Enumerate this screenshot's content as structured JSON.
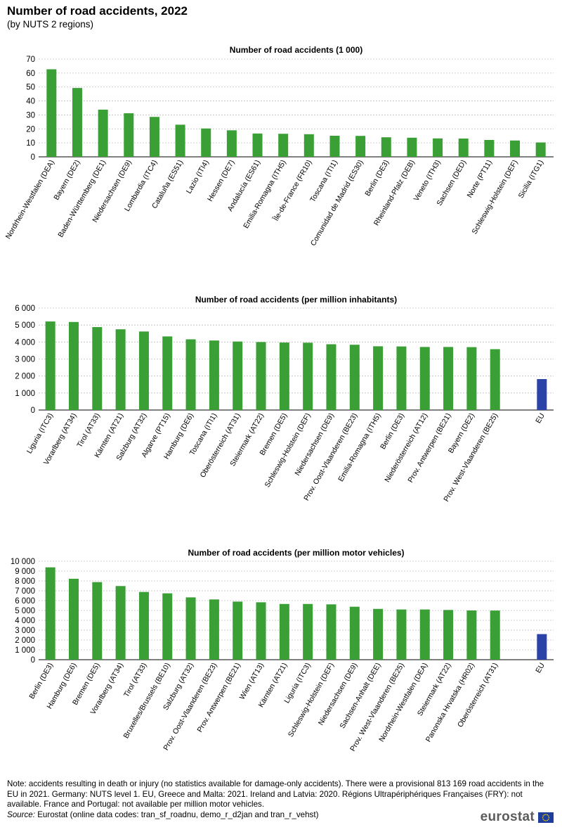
{
  "page": {
    "title": "Number of road accidents, 2022",
    "subtitle": "(by NUTS 2 regions)"
  },
  "colors": {
    "bar": "#3aa035",
    "eu_bar": "#2b42a8",
    "grid": "#bfbfbf",
    "axis": "#000000"
  },
  "chart_data": [
    {
      "type": "bar",
      "title": "Number of road accidents (1 000)",
      "categories": [
        "Nordrhein-Westfalen (DEA)",
        "Bayern (DE2)",
        "Baden-Württemberg (DE1)",
        "Niedersachsen (DE9)",
        "Lombardia (ITC4)",
        "Cataluña (ES51)",
        "Lazio (ITI4)",
        "Hessen (DE7)",
        "Andalucía (ES61)",
        "Emilia-Romagna (ITH5)",
        "Île-de-France (FR10)",
        "Toscana (ITI1)",
        "Comunidad de Madrid (ES30)",
        "Berlin (DE3)",
        "Rheinland-Pfalz (DEB)",
        "Veneto (ITH3)",
        "Sachsen (DED)",
        "Norte (PT11)",
        "Schleswig-Holstein (DEF)",
        "Sicilia (ITG1)"
      ],
      "values": [
        62.7,
        49.3,
        33.8,
        31.2,
        28.6,
        23.0,
        20.3,
        19.0,
        16.7,
        16.5,
        16.2,
        15.1,
        15.0,
        14.0,
        13.7,
        13.2,
        13.1,
        12.1,
        11.7,
        10.3
      ],
      "ylim": [
        0,
        70
      ],
      "yticks": [
        "0",
        "10",
        "20",
        "30",
        "40",
        "50",
        "60",
        "70"
      ],
      "grid": true
    },
    {
      "type": "bar",
      "title": "Number of road accidents (per million inhabitants)",
      "categories": [
        "Liguria (ITC3)",
        "Vorarlberg (AT34)",
        "Tirol (AT33)",
        "Kärnten (AT21)",
        "Salzburg (AT32)",
        "Algarve (PT15)",
        "Hamburg (DE6)",
        "Toscana (ITI1)",
        "Oberösterreich (AT31)",
        "Steiermark (AT22)",
        "Bremen (DE5)",
        "Schleswig-Holstein (DEF)",
        "Niedersachsen (DE9)",
        "Prov. Oost-Vlaanderen (BE23)",
        "Emilia-Romagna (ITH5)",
        "Berlin (DE3)",
        "Niederösterreich (AT12)",
        "Prov. Antwerpen (BE21)",
        "Bayern (DE2)",
        "Prov. West-Vlaanderen (BE25)",
        "EU"
      ],
      "values": [
        5210,
        5180,
        4880,
        4750,
        4620,
        4330,
        4160,
        4090,
        4030,
        4000,
        3970,
        3960,
        3870,
        3840,
        3750,
        3740,
        3710,
        3710,
        3700,
        3580,
        1820
      ],
      "ylim": [
        0,
        6000
      ],
      "yticks": [
        "0",
        "1 000",
        "2 000",
        "3 000",
        "4 000",
        "5 000",
        "6 000"
      ],
      "grid": true
    },
    {
      "type": "bar",
      "title": "Number of road accidents (per million motor vehicles)",
      "categories": [
        "Berlin (DE3)",
        "Hamburg (DE6)",
        "Bremen (DE5)",
        "Vorarlberg (AT34)",
        "Tirol (AT33)",
        "Bruxelles/Brussels (BE10)",
        "Salzburg (AT32)",
        "Prov. Oost-Vlaanderen (BE23)",
        "Prov. Antwerpen (BE21)",
        "Wien (AT13)",
        "Kärnten (AT21)",
        "Liguria (ITC3)",
        "Schleswig-Holstein (DEF)",
        "Niedersachsen (DE9)",
        "Sachsen-Anhalt (DEE)",
        "Prov. West-Vlaanderen (BE25)",
        "Nordrhein-Westfalen (DEA)",
        "Steiermark (AT22)",
        "Panonska Hrvatska (HR02)",
        "Oberösterreich (AT31)",
        "EU"
      ],
      "values": [
        9380,
        8220,
        7880,
        7480,
        6880,
        6740,
        6330,
        6120,
        5900,
        5830,
        5660,
        5660,
        5620,
        5380,
        5160,
        5100,
        5100,
        5050,
        5000,
        4990,
        2600
      ],
      "ylim": [
        0,
        10000
      ],
      "yticks": [
        "0",
        "1 000",
        "2 000",
        "3 000",
        "4 000",
        "5 000",
        "6 000",
        "7 000",
        "8 000",
        "9 000",
        "10 000"
      ],
      "grid": true
    }
  ],
  "footer": {
    "note": "Note: accidents resulting in death or injury (no statistics available for damage-only accidents). There were a provisional 813 169 road accidents in the EU in 2021. Germany: NUTS level 1. EU, Greece and Malta: 2021. Ireland and Latvia: 2020. Régions Ultrapériphériques Françaises (FRY): not available. France and Portugal: not available per million motor vehicles.",
    "source_label": "Source:",
    "source_text": " Eurostat (online data codes: tran_sf_roadnu, demo_r_d2jan and tran_r_vehst)"
  },
  "logo": {
    "text": "eurostat",
    "icon": "eu-flag-icon"
  }
}
